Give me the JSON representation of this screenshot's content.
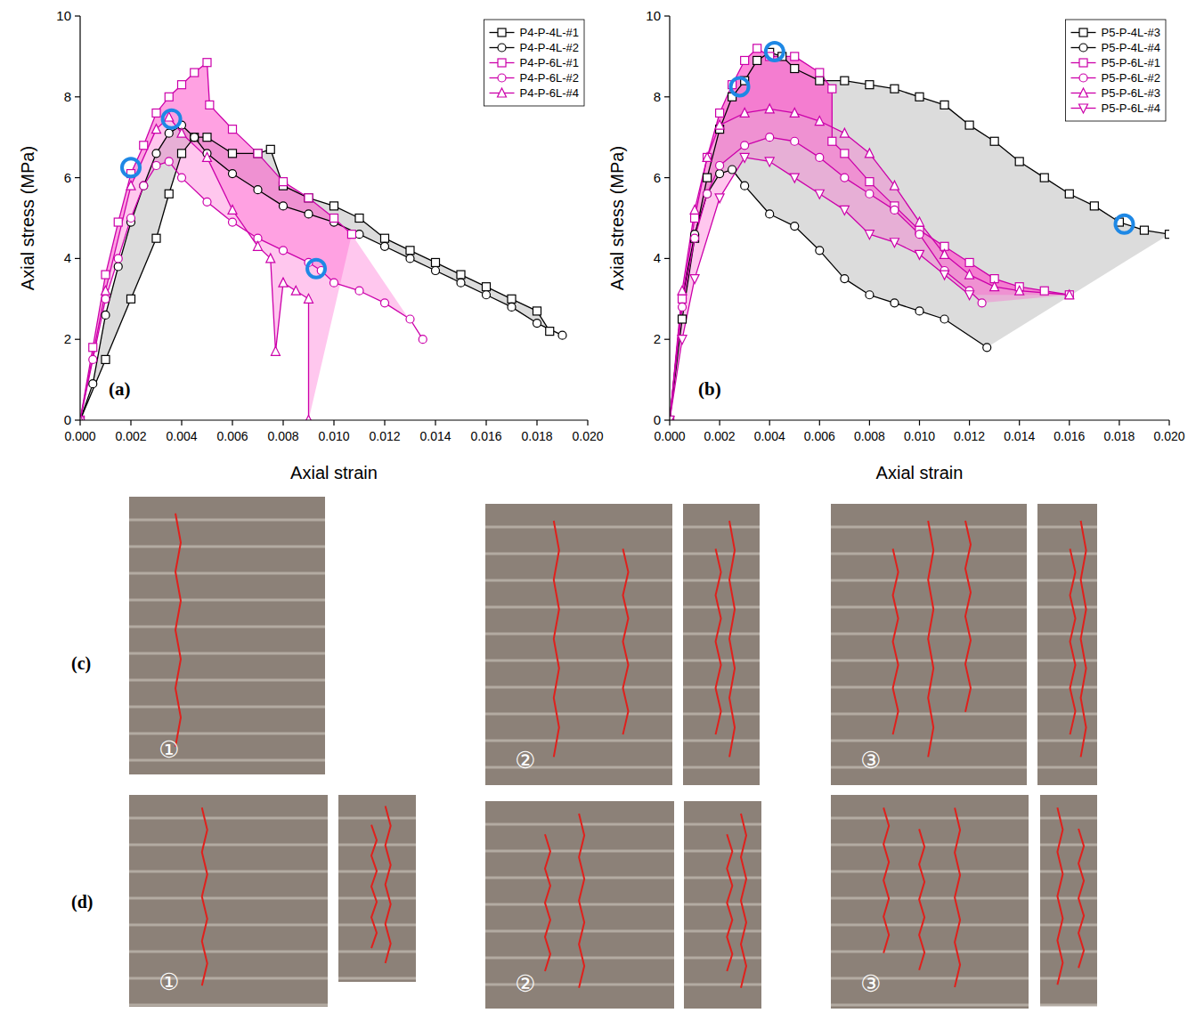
{
  "chart_data": [
    {
      "type": "line",
      "panel_label": "(a)",
      "x_label": "Axial strain",
      "y_label": "Axial stress (MPa)",
      "xlim": [
        0,
        0.02
      ],
      "ylim": [
        0,
        10
      ],
      "xticks": [
        {
          "value": 0,
          "label": "0.000"
        },
        0.002,
        0.004,
        0.006,
        0.008,
        {
          "value": 0.01,
          "label": "0.010"
        },
        0.012,
        0.014,
        0.016,
        0.018,
        {
          "value": 0.02,
          "label": "0.020"
        }
      ],
      "yticks": [
        0,
        2,
        4,
        6,
        8,
        10
      ],
      "grid": false,
      "legend": "upper right",
      "series": [
        {
          "name": "P4-P-4L-#1",
          "color": "#000000",
          "marker": "square",
          "x": [
            0,
            0.001,
            0.002,
            0.003,
            0.0035,
            0.004,
            0.0045,
            0.005,
            0.006,
            0.007,
            0.0075,
            0.008,
            0.009,
            0.01,
            0.011,
            0.012,
            0.013,
            0.014,
            0.015,
            0.016,
            0.017,
            0.018,
            0.0185
          ],
          "values": [
            0,
            1.5,
            3.0,
            4.5,
            5.6,
            6.6,
            7.0,
            7.0,
            6.6,
            6.6,
            6.7,
            5.8,
            5.5,
            5.3,
            5.0,
            4.5,
            4.2,
            3.9,
            3.6,
            3.3,
            3.0,
            2.7,
            2.2
          ]
        },
        {
          "name": "P4-P-4L-#2",
          "color": "#000000",
          "marker": "circle",
          "x": [
            0,
            0.0005,
            0.001,
            0.0015,
            0.002,
            0.0025,
            0.003,
            0.0035,
            0.004,
            0.0045,
            0.005,
            0.006,
            0.007,
            0.008,
            0.009,
            0.01,
            0.011,
            0.012,
            0.013,
            0.014,
            0.015,
            0.016,
            0.017,
            0.018,
            0.019
          ],
          "values": [
            0,
            0.9,
            2.6,
            3.8,
            4.9,
            5.8,
            6.6,
            7.1,
            7.3,
            7.0,
            6.6,
            6.1,
            5.7,
            5.3,
            5.1,
            4.9,
            4.6,
            4.3,
            4.0,
            3.7,
            3.4,
            3.1,
            2.8,
            2.4,
            2.1
          ]
        },
        {
          "name": "P4-P-6L-#1",
          "color": "#cc00aa",
          "marker": "square",
          "x": [
            0,
            0.0005,
            0.001,
            0.0015,
            0.002,
            0.0025,
            0.003,
            0.0035,
            0.004,
            0.0045,
            0.005,
            0.0051,
            0.006,
            0.007,
            0.008,
            0.009,
            0.01,
            0.0107
          ],
          "values": [
            0,
            1.8,
            3.6,
            4.9,
            6.1,
            6.8,
            7.6,
            8.0,
            8.3,
            8.6,
            8.85,
            7.8,
            7.2,
            6.6,
            5.9,
            5.5,
            5.0,
            4.6
          ]
        },
        {
          "name": "P4-P-6L-#2",
          "color": "#cc00aa",
          "marker": "circle",
          "x": [
            0,
            0.0005,
            0.001,
            0.0015,
            0.002,
            0.0025,
            0.003,
            0.0035,
            0.004,
            0.005,
            0.006,
            0.007,
            0.008,
            0.009,
            0.0095,
            0.01,
            0.011,
            0.012,
            0.013,
            0.0135
          ],
          "values": [
            0,
            1.5,
            3.0,
            4.0,
            5.0,
            5.8,
            6.3,
            6.4,
            6.0,
            5.4,
            4.9,
            4.5,
            4.2,
            3.9,
            3.7,
            3.4,
            3.2,
            2.9,
            2.5,
            2.0
          ]
        },
        {
          "name": "P4-P-6L-#4",
          "color": "#cc00aa",
          "marker": "triangle",
          "x": [
            0,
            0.001,
            0.002,
            0.003,
            0.0035,
            0.004,
            0.005,
            0.006,
            0.007,
            0.0075,
            0.0077,
            0.008,
            0.0085,
            0.009,
            0.009
          ],
          "values": [
            0,
            3.2,
            5.8,
            7.2,
            7.5,
            7.1,
            6.5,
            5.2,
            4.3,
            4.0,
            1.7,
            3.4,
            3.2,
            3.0,
            0
          ]
        }
      ],
      "highlights": [
        {
          "x": 0.002,
          "y": 6.25
        },
        {
          "x": 0.0036,
          "y": 7.45
        },
        {
          "x": 0.0093,
          "y": 3.75
        }
      ]
    },
    {
      "type": "line",
      "panel_label": "(b)",
      "x_label": "Axial strain",
      "y_label": "Axial stress (MPa)",
      "xlim": [
        0,
        0.02
      ],
      "ylim": [
        0,
        10
      ],
      "xticks": [
        {
          "value": 0,
          "label": "0.000"
        },
        0.002,
        0.004,
        0.006,
        0.008,
        {
          "value": 0.01,
          "label": "0.010"
        },
        0.012,
        0.014,
        0.016,
        0.018,
        {
          "value": 0.02,
          "label": "0.020"
        }
      ],
      "yticks": [
        0,
        2,
        4,
        6,
        8,
        10
      ],
      "grid": false,
      "legend": "upper right",
      "series": [
        {
          "name": "P5-P-4L-#3",
          "color": "#000000",
          "marker": "square",
          "x": [
            0,
            0.0005,
            0.001,
            0.0015,
            0.002,
            0.0025,
            0.003,
            0.0035,
            0.004,
            0.0045,
            0.005,
            0.006,
            0.007,
            0.008,
            0.009,
            0.01,
            0.011,
            0.012,
            0.013,
            0.014,
            0.015,
            0.016,
            0.017,
            0.018,
            0.019,
            0.02
          ],
          "values": [
            0,
            2.5,
            4.5,
            6.0,
            7.2,
            8.0,
            8.4,
            8.9,
            9.1,
            9.0,
            8.7,
            8.4,
            8.4,
            8.3,
            8.2,
            8.0,
            7.8,
            7.3,
            6.9,
            6.4,
            6.0,
            5.6,
            5.3,
            4.9,
            4.7,
            4.6
          ]
        },
        {
          "name": "P5-P-4L-#4",
          "color": "#000000",
          "marker": "circle",
          "x": [
            0,
            0.0005,
            0.001,
            0.0015,
            0.002,
            0.0025,
            0.003,
            0.004,
            0.005,
            0.006,
            0.007,
            0.008,
            0.009,
            0.01,
            0.011,
            0.0127
          ],
          "values": [
            0,
            3.0,
            4.6,
            5.6,
            6.1,
            6.2,
            5.8,
            5.1,
            4.8,
            4.2,
            3.5,
            3.1,
            2.9,
            2.7,
            2.5,
            1.8
          ]
        },
        {
          "name": "P5-P-6L-#1",
          "color": "#cc00aa",
          "marker": "square",
          "x": [
            0,
            0.0005,
            0.001,
            0.0015,
            0.002,
            0.0025,
            0.003,
            0.0035,
            0.004,
            0.005,
            0.006,
            0.0065,
            0.0065,
            0.007,
            0.008,
            0.009,
            0.01,
            0.011,
            0.012,
            0.013,
            0.014,
            0.015,
            0.016
          ],
          "values": [
            0,
            3.0,
            5.0,
            6.5,
            7.6,
            8.3,
            8.9,
            9.2,
            9.0,
            9.0,
            8.6,
            8.2,
            6.9,
            6.6,
            5.9,
            5.3,
            4.7,
            4.3,
            3.9,
            3.5,
            3.3,
            3.2,
            3.1
          ]
        },
        {
          "name": "P5-P-6L-#2",
          "color": "#cc00aa",
          "marker": "circle",
          "x": [
            0,
            0.0005,
            0.001,
            0.0015,
            0.002,
            0.003,
            0.004,
            0.005,
            0.006,
            0.007,
            0.008,
            0.009,
            0.01,
            0.011,
            0.012,
            0.0125
          ],
          "values": [
            0,
            2.8,
            4.5,
            5.6,
            6.3,
            6.8,
            7.0,
            6.9,
            6.5,
            6.0,
            5.6,
            5.2,
            4.6,
            3.7,
            3.2,
            2.9
          ]
        },
        {
          "name": "P5-P-6L-#3",
          "color": "#cc00aa",
          "marker": "triangle",
          "x": [
            0,
            0.0005,
            0.001,
            0.0015,
            0.002,
            0.003,
            0.004,
            0.005,
            0.006,
            0.007,
            0.008,
            0.009,
            0.01,
            0.011,
            0.012,
            0.013,
            0.014,
            0.016
          ],
          "values": [
            0,
            3.2,
            5.2,
            6.5,
            7.3,
            7.6,
            7.7,
            7.6,
            7.4,
            7.1,
            6.6,
            5.8,
            4.9,
            4.1,
            3.6,
            3.3,
            3.2,
            3.1
          ]
        },
        {
          "name": "P5-P-6L-#4",
          "color": "#cc00aa",
          "marker": "triangle_down",
          "x": [
            0,
            0.0005,
            0.001,
            0.002,
            0.003,
            0.004,
            0.005,
            0.006,
            0.007,
            0.008,
            0.009,
            0.01,
            0.011,
            0.012
          ],
          "values": [
            0,
            2.0,
            3.5,
            5.5,
            6.5,
            6.4,
            6.0,
            5.6,
            5.2,
            4.6,
            4.4,
            4.1,
            3.6,
            3.1
          ]
        }
      ],
      "highlights": [
        {
          "x": 0.0028,
          "y": 8.25
        },
        {
          "x": 0.0042,
          "y": 9.12
        },
        {
          "x": 0.0182,
          "y": 4.85
        }
      ]
    }
  ],
  "photo_panels": [
    {
      "label": "(c)",
      "stages": [
        "①",
        "②",
        "③"
      ]
    },
    {
      "label": "(d)",
      "stages": [
        "①",
        "②",
        "③"
      ]
    }
  ]
}
